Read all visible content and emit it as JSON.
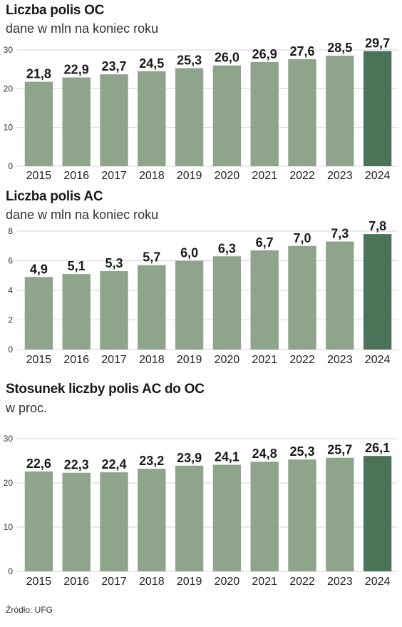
{
  "chart_data": [
    {
      "type": "bar",
      "title": "Liczba polis OC",
      "subtitle": "dane w mln na koniec roku",
      "categories": [
        "2015",
        "2016",
        "2017",
        "2018",
        "2019",
        "2020",
        "2021",
        "2022",
        "2023",
        "2024"
      ],
      "values": [
        21.8,
        22.9,
        23.7,
        24.5,
        25.3,
        26.0,
        26.9,
        27.6,
        28.5,
        29.7
      ],
      "value_labels": [
        "21,8",
        "22,9",
        "23,7",
        "24,5",
        "25,3",
        "26,0",
        "26,9",
        "27,6",
        "28,5",
        "29,7"
      ],
      "yticks": [
        "0",
        "10",
        "20",
        "30"
      ],
      "ytick_values": [
        0,
        10,
        20,
        30
      ],
      "ylim": [
        0,
        30
      ],
      "grid": true,
      "highlight_index": 9
    },
    {
      "type": "bar",
      "title": "Liczba polis AC",
      "subtitle": "dane w mln na koniec roku",
      "categories": [
        "2015",
        "2016",
        "2017",
        "2018",
        "2019",
        "2020",
        "2021",
        "2022",
        "2023",
        "2024"
      ],
      "values": [
        4.9,
        5.1,
        5.3,
        5.7,
        6.0,
        6.3,
        6.7,
        7.0,
        7.3,
        7.8
      ],
      "value_labels": [
        "4,9",
        "5,1",
        "5,3",
        "5,7",
        "6,0",
        "6,3",
        "6,7",
        "7,0",
        "7,3",
        "7,8"
      ],
      "yticks": [
        "0",
        "2",
        "4",
        "6",
        "8"
      ],
      "ytick_values": [
        0,
        2,
        4,
        6,
        8
      ],
      "ylim": [
        0,
        8
      ],
      "grid": true,
      "highlight_index": 9
    },
    {
      "type": "bar",
      "title": "Stosunek liczby polis AC do OC",
      "subtitle": "w proc.",
      "categories": [
        "2015",
        "2016",
        "2017",
        "2018",
        "2019",
        "2020",
        "2021",
        "2022",
        "2023",
        "2024"
      ],
      "values": [
        22.6,
        22.3,
        22.4,
        23.2,
        23.9,
        24.1,
        24.8,
        25.3,
        25.7,
        26.1
      ],
      "value_labels": [
        "22,6",
        "22,3",
        "22,4",
        "23,2",
        "23,9",
        "24,1",
        "24,8",
        "25,3",
        "25,7",
        "26,1"
      ],
      "yticks": [
        "0",
        "10",
        "20",
        "30"
      ],
      "ytick_values": [
        0,
        10,
        20,
        30
      ],
      "ylim": [
        0,
        30
      ],
      "grid": true,
      "highlight_index": 9
    }
  ],
  "colors": {
    "bar": "#8ea48b",
    "highlight": "#4a7358"
  },
  "source": "Źródło: UFG"
}
